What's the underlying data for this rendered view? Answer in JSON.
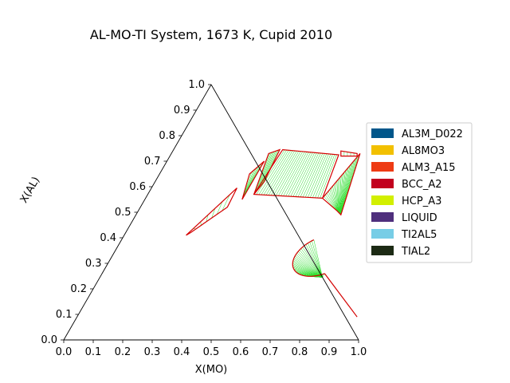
{
  "chart_data": {
    "type": "ternary",
    "title": "AL-MO-TI System, 1673 K, Cupid 2010",
    "xlabel": "X(MO)",
    "ylabel": "X(AL)",
    "x_ticks": [
      "0.0",
      "0.1",
      "0.2",
      "0.3",
      "0.4",
      "0.5",
      "0.6",
      "0.7",
      "0.8",
      "0.9",
      "1.0"
    ],
    "y_ticks": [
      "0.0",
      "0.1",
      "0.2",
      "0.3",
      "0.4",
      "0.5",
      "0.6",
      "0.7",
      "0.8",
      "0.9",
      "1.0"
    ],
    "legend_position": "center-right",
    "legend": [
      {
        "name": "AL3M_D022",
        "color": "#00568a"
      },
      {
        "name": "AL8MO3",
        "color": "#f2c000"
      },
      {
        "name": "ALM3_A15",
        "color": "#ee3b14"
      },
      {
        "name": "BCC_A2",
        "color": "#c2001e"
      },
      {
        "name": "HCP_A3",
        "color": "#d2ef00"
      },
      {
        "name": "LIQUID",
        "color": "#4f2f7d"
      },
      {
        "name": "TI2AL5",
        "color": "#77cde6"
      },
      {
        "name": "TIAL2",
        "color": "#1c2a14"
      }
    ],
    "tie_line_color": "#22dd22",
    "boundary_color": "#d40000",
    "regions": [
      {
        "top": [
          [
            0.37,
            0.745
          ],
          [
            0.57,
            0.725
          ]
        ],
        "bottom": [
          [
            0.36,
            0.57
          ],
          [
            0.6,
            0.555
          ]
        ],
        "count": 28
      },
      {
        "top": [
          [
            0.33,
            0.73
          ],
          [
            0.36,
            0.745
          ]
        ],
        "bottom": [
          [
            0.36,
            0.57
          ],
          [
            0.37,
            0.62
          ]
        ],
        "count": 8
      },
      {
        "top": [
          [
            0.305,
            0.65
          ],
          [
            0.33,
            0.7
          ]
        ],
        "bottom": [
          [
            0.33,
            0.55
          ],
          [
            0.33,
            0.57
          ]
        ],
        "count": 7
      },
      {
        "top": [
          [
            0.21,
            0.41
          ],
          [
            0.29,
            0.595
          ]
        ],
        "bottom": [
          [
            0.22,
            0.42
          ],
          [
            0.295,
            0.52
          ]
        ],
        "count": 7
      },
      {
        "top": [
          [
            0.57,
            0.74
          ],
          [
            0.63,
            0.73
          ]
        ],
        "bottom": [
          [
            0.58,
            0.72
          ],
          [
            0.635,
            0.72
          ]
        ],
        "count": 5
      },
      {
        "top": [
          [
            0.6,
            0.555
          ],
          [
            0.64,
            0.73
          ]
        ],
        "bottom": [
          [
            0.675,
            0.505
          ],
          [
            0.695,
            0.49
          ]
        ],
        "count": 26
      }
    ],
    "fan_region": {
      "focus": [
        0.755,
        0.245
      ],
      "arc_center": [
        0.71,
        0.33
      ],
      "arc_radius": 0.09,
      "arc_from_deg": 130,
      "arc_to_deg": 300,
      "outer_end": [
        0.95,
        0.09
      ],
      "count": 40
    }
  }
}
